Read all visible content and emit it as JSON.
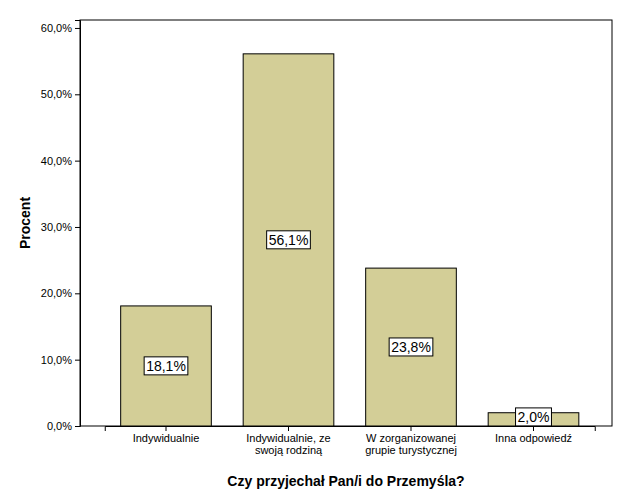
{
  "chart_data": {
    "type": "bar",
    "x_label": "Czy przyjechał Pan/i do Przemyśla?",
    "y_label": "Procent",
    "categories": [
      "Indywidualnie",
      "Indywidualnie, ze swoją rodziną",
      "W zorganizowanej grupie turystycznej",
      "Inna odpowiedź"
    ],
    "values": [
      18.1,
      56.1,
      23.8,
      2.0
    ],
    "value_labels": [
      "18,1%",
      "56,1%",
      "23,8%",
      "2,0%"
    ],
    "color": "#d3ce97",
    "data_labels": true,
    "grid": false,
    "ylim": [
      0,
      61.2
    ],
    "yticks": [
      {
        "value": 0,
        "label": "0,0%"
      },
      {
        "value": 10,
        "label": "10,0%"
      },
      {
        "value": 20,
        "label": "20,0%"
      },
      {
        "value": 30,
        "label": "30,0%"
      },
      {
        "value": 40,
        "label": "40,0%"
      },
      {
        "value": 50,
        "label": "50,0%"
      },
      {
        "value": 60,
        "label": "60,0%"
      }
    ]
  }
}
